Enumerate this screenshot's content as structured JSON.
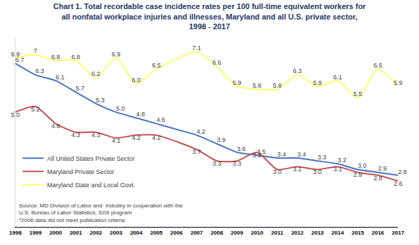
{
  "chart_data": {
    "type": "line",
    "title": "Chart 1. Total recordable case incidence rates per 100 full-time equivalent workers for all nonfatal workplace injuries and illnesses, Maryland and all U.S. private sector, 1998 - 2017",
    "x": [
      1998,
      1999,
      2000,
      2001,
      2002,
      2003,
      2004,
      2005,
      2006,
      2007,
      2008,
      2009,
      2010,
      2011,
      2012,
      2013,
      2014,
      2015,
      2016,
      2017
    ],
    "xlim": [
      1998,
      2017
    ],
    "xticks": [
      1998,
      1999,
      2000,
      2001,
      2002,
      2003,
      2004,
      2005,
      2006,
      2007,
      2008,
      2009,
      2010,
      2011,
      2012,
      2013,
      2014,
      2015,
      2016,
      2017
    ],
    "ylim": [
      1.0,
      7.6
    ],
    "tick_labels": "x",
    "grid": false,
    "data_labels": true,
    "legend": "lower left",
    "series": [
      {
        "name": "All United States Private Sector",
        "color": "#4472c4",
        "values": [
          6.7,
          6.3,
          6.1,
          5.7,
          5.3,
          5.0,
          4.8,
          4.6,
          4.4,
          4.2,
          3.9,
          3.6,
          3.5,
          3.4,
          3.4,
          3.3,
          3.2,
          3.0,
          2.9,
          2.8
        ],
        "value_labels": [
          "6.7",
          "6.3",
          "6.1",
          "5.7",
          "5.3",
          "5.0",
          "4.8",
          "4.6",
          null,
          "4.2",
          "3.9",
          "3.6",
          "3.5",
          "3.4",
          "3.4",
          "3.3",
          "3.2",
          "3.0",
          "2.9",
          "2.8"
        ]
      },
      {
        "name": "Maryland Private Sector",
        "color": "#c0504d",
        "values": [
          5.0,
          5.2,
          4.6,
          4.3,
          4.3,
          4.1,
          4.2,
          4.2,
          null,
          3.7,
          3.3,
          3.3,
          3.6,
          3.0,
          3.1,
          3.0,
          3.1,
          2.9,
          2.8,
          2.6
        ],
        "value_labels": [
          "5.0",
          "5.2",
          "4.6",
          "4.3",
          "4.3",
          "4.1",
          "4.2",
          "4.2",
          null,
          "3.7",
          "3.3",
          "3.3",
          "3.6",
          "3.0",
          "3.1",
          "3.0",
          "3.1",
          "2.9",
          "2.8",
          "2.6"
        ]
      },
      {
        "name": "Maryland State and Local Govt.",
        "color": "#ffff66",
        "values": [
          6.9,
          7,
          6.8,
          6.8,
          6.2,
          6.9,
          6.0,
          6.5,
          null,
          7.1,
          6.6,
          5.9,
          5.8,
          5.8,
          6.3,
          5.9,
          6.1,
          5.5,
          6.5,
          5.9
        ],
        "value_labels": [
          "6.9",
          "7",
          "6.8",
          "6.8",
          "6.2",
          "6.9",
          "6.0",
          "6.5",
          null,
          "7.1",
          "6.6",
          "5.9",
          "5.8",
          "5.8",
          "6.3",
          "5.9",
          "6.1",
          "5.5",
          "6.5",
          "5.9"
        ]
      }
    ],
    "annotations": [
      "Source: MD Division of Labor and  Industry in cooperation with the",
      "U.S. Bureau of Labor Statistics, SOII program",
      "*2006 data did not meet publication criteria"
    ]
  }
}
